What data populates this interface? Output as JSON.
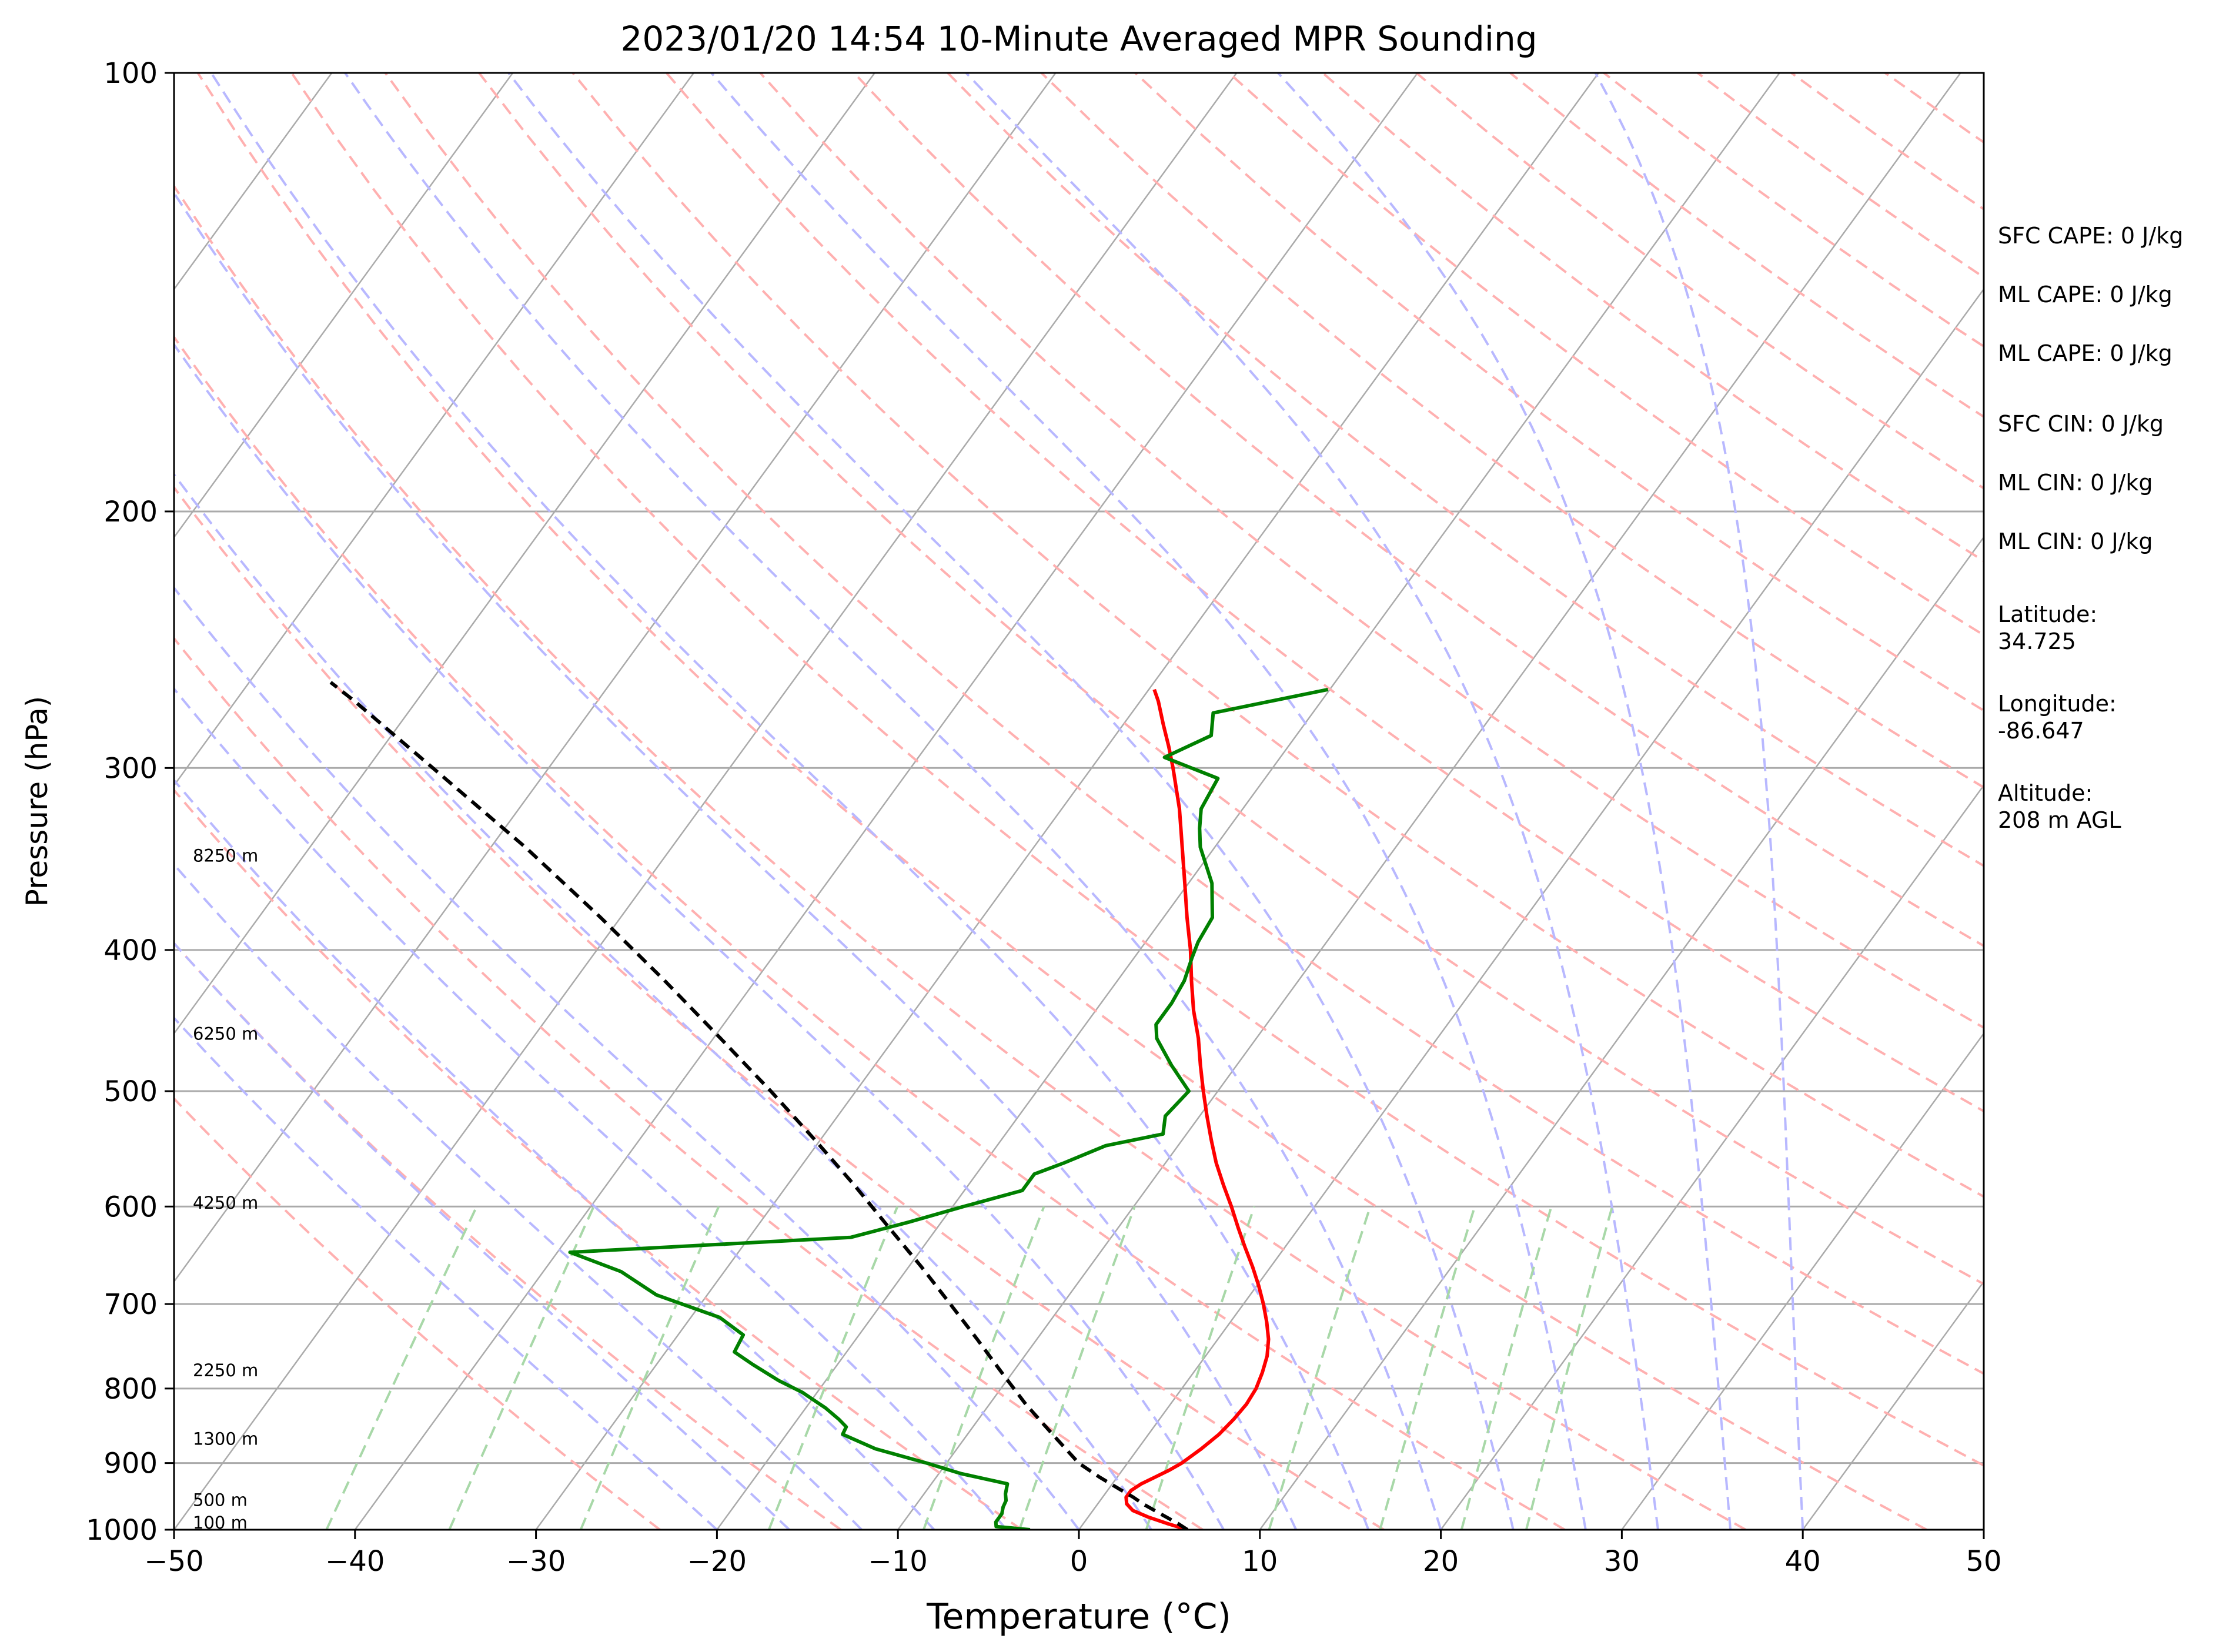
{
  "chart_data": {
    "type": "line",
    "title": "2023/01/20 14:54 10-Minute Averaged MPR Sounding",
    "xlabel": "Temperature (°C)",
    "ylabel": "Pressure (hPa)",
    "xlim": [
      -50,
      50
    ],
    "ylim": [
      1000,
      100
    ],
    "y_scale": "log",
    "x_ticks": [
      "−50",
      "−40",
      "−30",
      "−20",
      "−10",
      "0",
      "10",
      "20",
      "30",
      "40",
      "50"
    ],
    "y_ticks": [
      "100",
      "200",
      "300",
      "400",
      "500",
      "600",
      "700",
      "800",
      "900",
      "1000"
    ],
    "grid": true,
    "colors": {
      "temperature": "#ff0000",
      "dewpoint": "#008000",
      "parcel": "#000000",
      "isotherm": "#aaaaaa",
      "dry_adiabat": "#ffb0b0",
      "moist_adiabat": "#b8b8ff",
      "mixing_ratio": "#a8d8a8"
    },
    "height_labels": [
      {
        "text": "100 m",
        "p": 990
      },
      {
        "text": "500 m",
        "p": 955
      },
      {
        "text": "1300 m",
        "p": 867
      },
      {
        "text": "2250 m",
        "p": 778
      },
      {
        "text": "4250 m",
        "p": 597
      },
      {
        "text": "6250 m",
        "p": 457
      },
      {
        "text": "8250 m",
        "p": 345
      }
    ],
    "series": [
      {
        "role": "temperature",
        "points": [
          [
            1000,
            6.0
          ],
          [
            990,
            4.6
          ],
          [
            980,
            3.3
          ],
          [
            970,
            2.2
          ],
          [
            960,
            1.6
          ],
          [
            950,
            1.3
          ],
          [
            940,
            1.3
          ],
          [
            930,
            1.6
          ],
          [
            920,
            2.1
          ],
          [
            910,
            2.6
          ],
          [
            900,
            3.0
          ],
          [
            880,
            3.5
          ],
          [
            860,
            3.9
          ],
          [
            840,
            4.1
          ],
          [
            820,
            4.2
          ],
          [
            800,
            4.1
          ],
          [
            780,
            3.8
          ],
          [
            760,
            3.4
          ],
          [
            740,
            2.8
          ],
          [
            720,
            2.0
          ],
          [
            700,
            1.1
          ],
          [
            680,
            0.1
          ],
          [
            660,
            -1.0
          ],
          [
            640,
            -2.2
          ],
          [
            620,
            -3.4
          ],
          [
            600,
            -4.6
          ],
          [
            580,
            -5.9
          ],
          [
            560,
            -7.2
          ],
          [
            540,
            -8.4
          ],
          [
            520,
            -9.6
          ],
          [
            500,
            -10.8
          ],
          [
            480,
            -12.0
          ],
          [
            460,
            -13.2
          ],
          [
            440,
            -14.6
          ],
          [
            420,
            -15.9
          ],
          [
            400,
            -17.2
          ],
          [
            380,
            -18.7
          ],
          [
            360,
            -20.2
          ],
          [
            340,
            -21.8
          ],
          [
            320,
            -23.5
          ],
          [
            300,
            -25.5
          ],
          [
            290,
            -26.6
          ],
          [
            280,
            -27.8
          ],
          [
            270,
            -29.0
          ],
          [
            265,
            -29.7
          ]
        ]
      },
      {
        "role": "dewpoint",
        "points": [
          [
            1000,
            -2.7
          ],
          [
            995,
            -4.7
          ],
          [
            988,
            -4.9
          ],
          [
            975,
            -4.9
          ],
          [
            965,
            -5.1
          ],
          [
            955,
            -5.2
          ],
          [
            945,
            -5.5
          ],
          [
            930,
            -5.8
          ],
          [
            915,
            -8.8
          ],
          [
            900,
            -11.1
          ],
          [
            880,
            -14.5
          ],
          [
            860,
            -16.9
          ],
          [
            850,
            -17.0
          ],
          [
            840,
            -17.7
          ],
          [
            825,
            -18.9
          ],
          [
            805,
            -20.8
          ],
          [
            790,
            -22.6
          ],
          [
            770,
            -24.7
          ],
          [
            755,
            -26.2
          ],
          [
            735,
            -26.4
          ],
          [
            715,
            -28.4
          ],
          [
            690,
            -32.8
          ],
          [
            665,
            -35.7
          ],
          [
            645,
            -39.3
          ],
          [
            630,
            -24.4
          ],
          [
            615,
            -21.8
          ],
          [
            600,
            -19.4
          ],
          [
            585,
            -16.8
          ],
          [
            570,
            -16.8
          ],
          [
            560,
            -15.6
          ],
          [
            545,
            -14.0
          ],
          [
            535,
            -11.3
          ],
          [
            520,
            -11.9
          ],
          [
            500,
            -11.6
          ],
          [
            480,
            -13.6
          ],
          [
            460,
            -15.5
          ],
          [
            450,
            -16.1
          ],
          [
            435,
            -16.1
          ],
          [
            420,
            -16.3
          ],
          [
            405,
            -16.8
          ],
          [
            395,
            -17.1
          ],
          [
            380,
            -17.3
          ],
          [
            360,
            -18.7
          ],
          [
            340,
            -20.8
          ],
          [
            330,
            -21.6
          ],
          [
            320,
            -22.3
          ],
          [
            305,
            -22.6
          ],
          [
            295,
            -26.4
          ],
          [
            285,
            -24.7
          ],
          [
            275,
            -25.5
          ],
          [
            265,
            -20.1
          ]
        ]
      },
      {
        "role": "parcel",
        "points": [
          [
            1000,
            6.0
          ],
          [
            990,
            5.2
          ],
          [
            980,
            4.3
          ],
          [
            970,
            3.4
          ],
          [
            960,
            2.5
          ],
          [
            950,
            1.7
          ],
          [
            940,
            0.8
          ],
          [
            930,
            -0.1
          ],
          [
            920,
            -1.0
          ],
          [
            900,
            -2.7
          ],
          [
            860,
            -5.3
          ],
          [
            820,
            -8.0
          ],
          [
            780,
            -10.6
          ],
          [
            740,
            -13.3
          ],
          [
            700,
            -16.2
          ],
          [
            660,
            -19.3
          ],
          [
            620,
            -22.7
          ],
          [
            580,
            -26.3
          ],
          [
            540,
            -30.3
          ],
          [
            500,
            -34.7
          ],
          [
            460,
            -39.6
          ],
          [
            420,
            -45.0
          ],
          [
            380,
            -51.1
          ],
          [
            340,
            -58.1
          ],
          [
            300,
            -66.4
          ],
          [
            270,
            -73.4
          ],
          [
            262,
            -75.5
          ]
        ]
      }
    ]
  },
  "sidebar": {
    "sfc_cape": "SFC CAPE: 0 J/kg",
    "ml_cape_1": "ML CAPE: 0 J/kg",
    "ml_cape_2": "ML CAPE: 0 J/kg",
    "sfc_cin": "SFC CIN: 0 J/kg",
    "ml_cin_1": "ML CIN: 0 J/kg",
    "ml_cin_2": "ML CIN: 0 J/kg",
    "latitude": "Latitude:\n34.725",
    "longitude": "Longitude:\n-86.647",
    "altitude": "Altitude:\n208 m AGL"
  }
}
